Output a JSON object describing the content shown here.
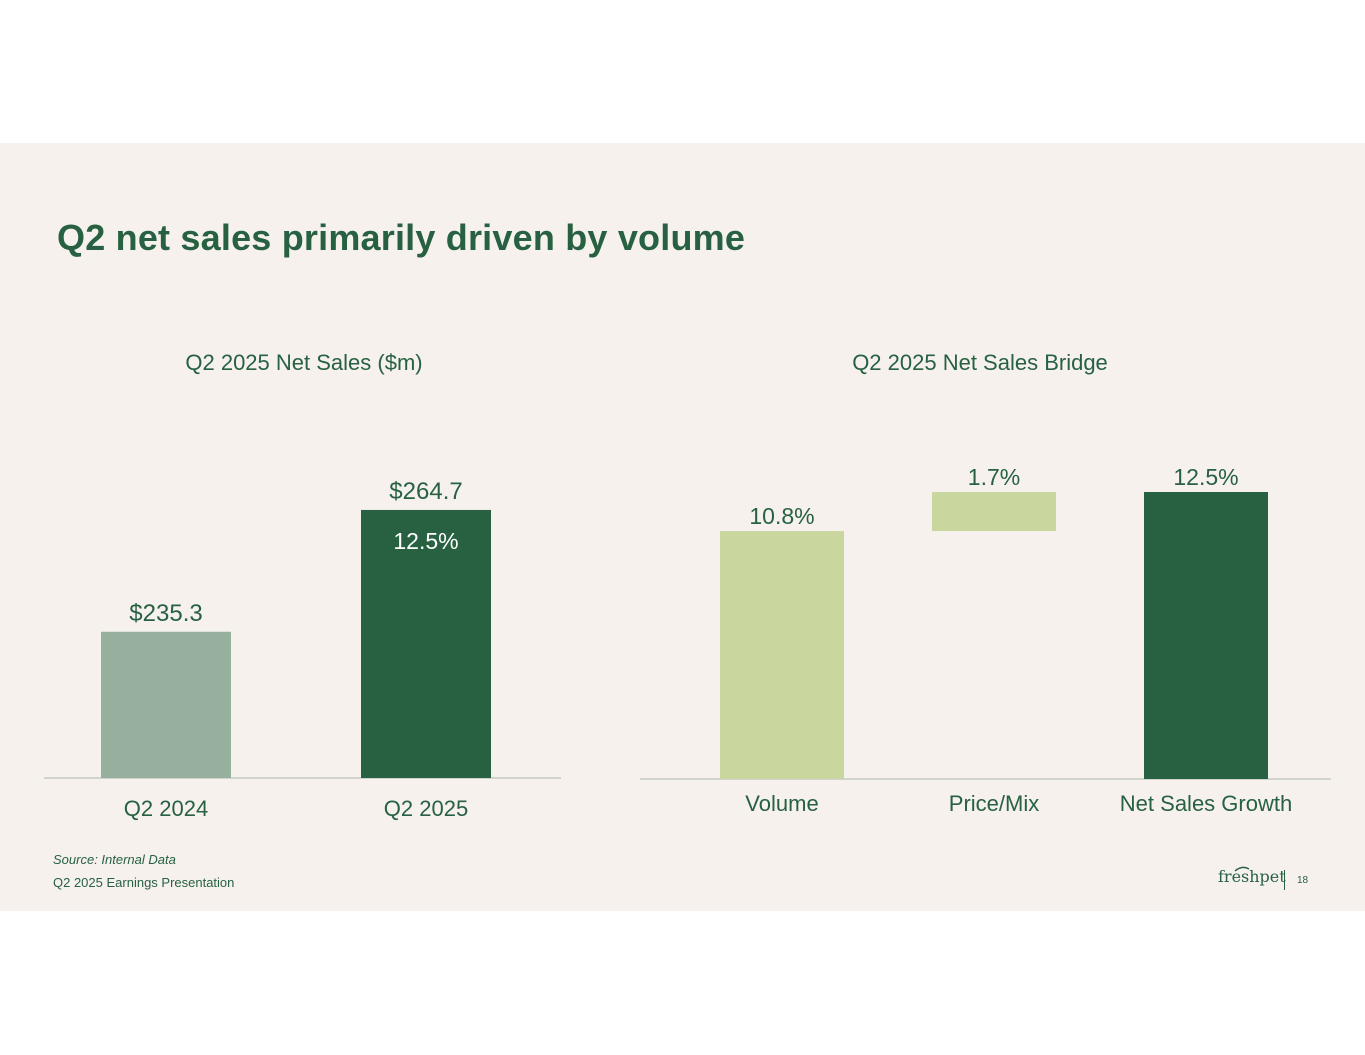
{
  "slide": {
    "title": "Q2 net sales primarily driven by volume",
    "source": "Source: Internal Data",
    "presentation": "Q2 2025 Earnings Presentation",
    "page_number": "18",
    "logo_text": "freshpet"
  },
  "colors": {
    "background": "#f6f1ed",
    "dark_green": "#276141",
    "muted_green": "#97b09e",
    "light_green": "#c9d79f",
    "axis": "#a9b8ad"
  },
  "chart_data": [
    {
      "type": "bar",
      "title": "Q2 2025 Net Sales ($m)",
      "categories": [
        "Q2 2024",
        "Q2 2025"
      ],
      "values": [
        235.3,
        264.7
      ],
      "value_labels": [
        "$235.3",
        "$264.7"
      ],
      "growth_label": "12.5%",
      "ylim": [
        200,
        270
      ],
      "xlabel": "",
      "ylabel": "",
      "grid": false
    },
    {
      "type": "bar",
      "subtype": "waterfall",
      "title": "Q2 2025 Net Sales Bridge",
      "categories": [
        "Volume",
        "Price/Mix",
        "Net Sales Growth"
      ],
      "values": [
        10.8,
        1.7,
        12.5
      ],
      "value_labels": [
        "10.8%",
        "1.7%",
        "12.5%"
      ],
      "ylim": [
        0,
        12.5
      ],
      "xlabel": "",
      "ylabel": "",
      "grid": false
    }
  ]
}
